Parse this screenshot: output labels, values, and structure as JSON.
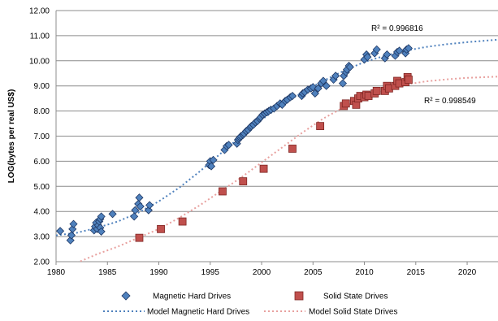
{
  "chart_data": {
    "type": "scatter",
    "title": "",
    "xlabel": "",
    "ylabel": "LOG(bytes per real US$)",
    "xlim": [
      1980,
      2023
    ],
    "ylim": [
      2.0,
      12.0
    ],
    "x_ticks": [
      1980,
      1985,
      1990,
      1995,
      2000,
      2005,
      2010,
      2015,
      2020
    ],
    "x_tick_labels": [
      "1980",
      "1985",
      "1990",
      "1995",
      "2000",
      "2005",
      "2010",
      "2015",
      "2020"
    ],
    "y_ticks": [
      2,
      3,
      4,
      5,
      6,
      7,
      8,
      9,
      10,
      11,
      12
    ],
    "y_tick_labels": [
      "2.00",
      "3.00",
      "4.00",
      "5.00",
      "6.00",
      "7.00",
      "8.00",
      "9.00",
      "10.00",
      "11.00",
      "12.00"
    ],
    "grid": "horizontal",
    "legend_position": "bottom",
    "series": [
      {
        "name": "Magnetic Hard Drives",
        "marker": "diamond",
        "color": "#4f81bd",
        "edge": "#1f3864",
        "points": [
          [
            1980.4,
            3.22
          ],
          [
            1981.4,
            2.85
          ],
          [
            1981.5,
            3.05
          ],
          [
            1981.6,
            3.3
          ],
          [
            1981.7,
            3.5
          ],
          [
            1983.7,
            3.25
          ],
          [
            1983.8,
            3.4
          ],
          [
            1983.9,
            3.55
          ],
          [
            1984.0,
            3.3
          ],
          [
            1984.1,
            3.45
          ],
          [
            1984.2,
            3.6
          ],
          [
            1984.3,
            3.35
          ],
          [
            1984.3,
            3.7
          ],
          [
            1984.4,
            3.8
          ],
          [
            1984.4,
            3.2
          ],
          [
            1985.5,
            3.9
          ],
          [
            1987.6,
            3.8
          ],
          [
            1987.7,
            4.05
          ],
          [
            1988.0,
            4.3
          ],
          [
            1988.1,
            4.55
          ],
          [
            1988.2,
            4.2
          ],
          [
            1989.0,
            4.05
          ],
          [
            1989.1,
            4.25
          ],
          [
            1994.9,
            5.85
          ],
          [
            1995.0,
            6.0
          ],
          [
            1995.1,
            5.8
          ],
          [
            1995.3,
            6.05
          ],
          [
            1996.4,
            6.45
          ],
          [
            1996.6,
            6.6
          ],
          [
            1996.8,
            6.65
          ],
          [
            1997.6,
            6.7
          ],
          [
            1997.7,
            6.85
          ],
          [
            1997.8,
            6.9
          ],
          [
            1997.9,
            6.95
          ],
          [
            1998.0,
            7.0
          ],
          [
            1998.2,
            7.05
          ],
          [
            1998.3,
            7.1
          ],
          [
            1998.5,
            7.2
          ],
          [
            1998.7,
            7.25
          ],
          [
            1998.9,
            7.35
          ],
          [
            1999.0,
            7.4
          ],
          [
            1999.2,
            7.45
          ],
          [
            1999.4,
            7.55
          ],
          [
            1999.6,
            7.6
          ],
          [
            1999.8,
            7.7
          ],
          [
            1999.9,
            7.75
          ],
          [
            2000.1,
            7.85
          ],
          [
            2000.3,
            7.9
          ],
          [
            2000.5,
            7.95
          ],
          [
            2000.7,
            8.0
          ],
          [
            2000.9,
            8.05
          ],
          [
            2001.2,
            8.1
          ],
          [
            2001.5,
            8.2
          ],
          [
            2001.8,
            8.3
          ],
          [
            2002.0,
            8.25
          ],
          [
            2002.3,
            8.4
          ],
          [
            2002.5,
            8.45
          ],
          [
            2002.8,
            8.55
          ],
          [
            2003.0,
            8.6
          ],
          [
            2003.9,
            8.6
          ],
          [
            2004.0,
            8.7
          ],
          [
            2004.2,
            8.75
          ],
          [
            2004.5,
            8.85
          ],
          [
            2004.8,
            8.9
          ],
          [
            2005.0,
            8.95
          ],
          [
            2005.2,
            8.7
          ],
          [
            2005.5,
            8.9
          ],
          [
            2005.8,
            9.1
          ],
          [
            2006.0,
            9.2
          ],
          [
            2006.3,
            9.0
          ],
          [
            2007.0,
            9.25
          ],
          [
            2007.2,
            9.4
          ],
          [
            2007.9,
            9.1
          ],
          [
            2008.0,
            9.4
          ],
          [
            2008.2,
            9.55
          ],
          [
            2008.3,
            9.65
          ],
          [
            2008.5,
            9.8
          ],
          [
            2008.6,
            9.75
          ],
          [
            2010.0,
            10.05
          ],
          [
            2010.2,
            10.25
          ],
          [
            2010.3,
            10.15
          ],
          [
            2011.0,
            10.3
          ],
          [
            2011.2,
            10.45
          ],
          [
            2012.0,
            10.1
          ],
          [
            2012.2,
            10.25
          ],
          [
            2013.0,
            10.2
          ],
          [
            2013.2,
            10.35
          ],
          [
            2013.4,
            10.4
          ],
          [
            2014.0,
            10.3
          ],
          [
            2014.1,
            10.45
          ],
          [
            2014.3,
            10.5
          ]
        ]
      },
      {
        "name": "Solid State Drives",
        "marker": "square",
        "color": "#c0504d",
        "edge": "#7f2623",
        "points": [
          [
            1988.1,
            2.95
          ],
          [
            1990.2,
            3.3
          ],
          [
            1992.3,
            3.6
          ],
          [
            1996.2,
            4.8
          ],
          [
            1998.2,
            5.2
          ],
          [
            2000.2,
            5.7
          ],
          [
            2003.0,
            6.5
          ],
          [
            2005.7,
            7.4
          ],
          [
            2008.0,
            8.2
          ],
          [
            2008.2,
            8.3
          ],
          [
            2009.0,
            8.4
          ],
          [
            2009.2,
            8.25
          ],
          [
            2009.4,
            8.5
          ],
          [
            2009.6,
            8.6
          ],
          [
            2010.0,
            8.55
          ],
          [
            2010.2,
            8.65
          ],
          [
            2010.4,
            8.6
          ],
          [
            2011.0,
            8.7
          ],
          [
            2011.2,
            8.8
          ],
          [
            2012.0,
            8.8
          ],
          [
            2012.2,
            9.0
          ],
          [
            2012.4,
            8.9
          ],
          [
            2013.0,
            9.0
          ],
          [
            2013.2,
            9.2
          ],
          [
            2013.4,
            9.1
          ],
          [
            2014.0,
            9.15
          ],
          [
            2014.2,
            9.35
          ],
          [
            2014.3,
            9.25
          ]
        ]
      }
    ],
    "models": [
      {
        "name": "Model Magnetic Hard Drives",
        "style": "dotted",
        "color": "#4f81bd",
        "points": [
          [
            1980,
            3.05
          ],
          [
            1982,
            3.15
          ],
          [
            1984,
            3.35
          ],
          [
            1986,
            3.6
          ],
          [
            1988,
            3.95
          ],
          [
            1990,
            4.4
          ],
          [
            1992,
            4.95
          ],
          [
            1994,
            5.6
          ],
          [
            1996,
            6.3
          ],
          [
            1998,
            7.0
          ],
          [
            2000,
            7.65
          ],
          [
            2002,
            8.25
          ],
          [
            2004,
            8.75
          ],
          [
            2006,
            9.2
          ],
          [
            2008,
            9.6
          ],
          [
            2010,
            9.95
          ],
          [
            2012,
            10.2
          ],
          [
            2014,
            10.4
          ],
          [
            2016,
            10.55
          ],
          [
            2018,
            10.66
          ],
          [
            2020,
            10.74
          ],
          [
            2023,
            10.84
          ]
        ],
        "r2_label": "R² = 0.996816"
      },
      {
        "name": "Model Solid State Drives",
        "style": "dotted",
        "color": "#e8a09e",
        "points": [
          [
            1982,
            1.95
          ],
          [
            1984,
            2.3
          ],
          [
            1986,
            2.6
          ],
          [
            1988,
            2.95
          ],
          [
            1990,
            3.3
          ],
          [
            1992,
            3.75
          ],
          [
            1994,
            4.25
          ],
          [
            1996,
            4.8
          ],
          [
            1998,
            5.35
          ],
          [
            2000,
            5.95
          ],
          [
            2002,
            6.55
          ],
          [
            2004,
            7.15
          ],
          [
            2006,
            7.7
          ],
          [
            2008,
            8.15
          ],
          [
            2010,
            8.55
          ],
          [
            2012,
            8.85
          ],
          [
            2014,
            9.05
          ],
          [
            2016,
            9.18
          ],
          [
            2018,
            9.26
          ],
          [
            2020,
            9.32
          ],
          [
            2023,
            9.37
          ]
        ],
        "r2_label": "R² = 0.998549"
      }
    ]
  }
}
